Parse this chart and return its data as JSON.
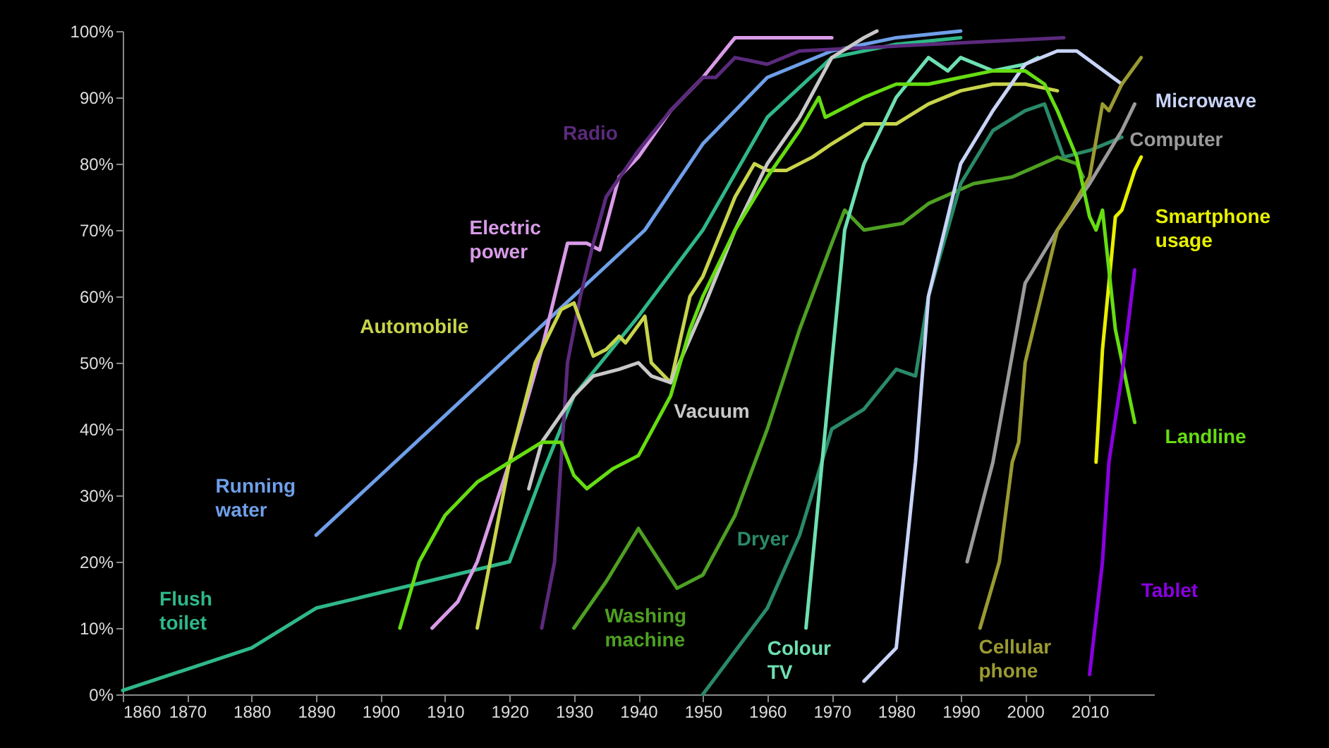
{
  "chart_data": {
    "type": "line",
    "xlim": [
      1860,
      2020
    ],
    "xticks": [
      1860,
      1870,
      1880,
      1890,
      1900,
      1910,
      1920,
      1930,
      1940,
      1950,
      1960,
      1970,
      1980,
      1990,
      2000,
      2010
    ],
    "ylim": [
      0,
      100
    ],
    "yticks": [
      {
        "value": 0,
        "label": "0%"
      },
      {
        "value": 10,
        "label": "10%"
      },
      {
        "value": 20,
        "label": "20%"
      },
      {
        "value": 30,
        "label": "30%"
      },
      {
        "value": 40,
        "label": "40%"
      },
      {
        "value": 50,
        "label": "50%"
      },
      {
        "value": 60,
        "label": "60%"
      },
      {
        "value": 70,
        "label": "70%"
      },
      {
        "value": 80,
        "label": "80%"
      },
      {
        "value": 90,
        "label": "90%"
      },
      {
        "value": 100,
        "label": "100%"
      }
    ],
    "grid": false,
    "marker": "none",
    "line_style": "solid",
    "series": [
      {
        "name": "Flush toilet",
        "color": "#2fb888",
        "x": [
          1860,
          1880,
          1890,
          1920,
          1925,
          1930,
          1940,
          1950,
          1960,
          1970,
          1980,
          1990
        ],
        "values": [
          0.6,
          7,
          13,
          20,
          33,
          45,
          57,
          70,
          87,
          96,
          98,
          99
        ]
      },
      {
        "name": "Running water",
        "color": "#6f9fe8",
        "x": [
          1890,
          1941,
          1950,
          1960,
          1970,
          1980,
          1990
        ],
        "values": [
          24,
          70,
          83,
          93,
          97,
          99,
          100
        ]
      },
      {
        "name": "Electric power",
        "color": "#d99be8",
        "x": [
          1908,
          1912,
          1915,
          1920,
          1925,
          1929,
          1932,
          1934,
          1937,
          1940,
          1945,
          1950,
          1955,
          1970
        ],
        "values": [
          10,
          14,
          20,
          35,
          52,
          68,
          68,
          67,
          78,
          81,
          88,
          93,
          99,
          99
        ]
      },
      {
        "name": "Radio",
        "color": "#5b2a7c",
        "x": [
          1925,
          1927,
          1929,
          1931,
          1933,
          1935,
          1940,
          1945,
          1950,
          1952,
          1955,
          1960,
          1965,
          2006
        ],
        "values": [
          10,
          20,
          50,
          60,
          68,
          75,
          82,
          88,
          93,
          93,
          96,
          95,
          97,
          99
        ]
      },
      {
        "name": "Automobile",
        "color": "#c8d44a",
        "x": [
          1915,
          1917,
          1920,
          1924,
          1928,
          1930,
          1933,
          1935,
          1937,
          1938,
          1941,
          1942,
          1945,
          1948,
          1950,
          1955,
          1958,
          1960,
          1963,
          1967,
          1970,
          1975,
          1980,
          1985,
          1990,
          1995,
          2000,
          2005
        ],
        "values": [
          10,
          20,
          35,
          50,
          58,
          59,
          51,
          52,
          54,
          53,
          57,
          50,
          47,
          60,
          63,
          75,
          80,
          79,
          79,
          81,
          83,
          86,
          86,
          89,
          91,
          92,
          92,
          91
        ]
      },
      {
        "name": "Vacuum",
        "color": "#c8c8c8",
        "x": [
          1923,
          1925,
          1930,
          1933,
          1937,
          1940,
          1942,
          1945,
          1950,
          1955,
          1960,
          1965,
          1970,
          1975,
          1977
        ],
        "values": [
          31,
          38,
          45,
          48,
          49,
          50,
          48,
          47,
          58,
          70,
          80,
          87,
          96,
          99,
          100
        ]
      },
      {
        "name": "Washing machine",
        "color": "#4ea022",
        "x": [
          1930,
          1935,
          1940,
          1944,
          1946,
          1950,
          1955,
          1960,
          1965,
          1970,
          1972,
          1975,
          1981,
          1985,
          1992,
          1998,
          2005,
          2008,
          2009
        ],
        "values": [
          10,
          17,
          25,
          19,
          16,
          18,
          27,
          40,
          55,
          68,
          73,
          70,
          71,
          74,
          77,
          78,
          81,
          80,
          78
        ]
      },
      {
        "name": "Dryer",
        "color": "#2a8a68",
        "x": [
          1950,
          1960,
          1965,
          1970,
          1975,
          1980,
          1983,
          1985,
          1990,
          1995,
          2000,
          2003,
          2006,
          2010,
          2015
        ],
        "values": [
          0,
          13,
          24,
          40,
          43,
          49,
          48,
          60,
          77,
          85,
          88,
          89,
          81,
          82,
          84
        ]
      },
      {
        "name": "Colour TV",
        "color": "#6ee0b2",
        "x": [
          1966,
          1968,
          1970,
          1972,
          1975,
          1978,
          1980,
          1985,
          1988,
          1990,
          1995,
          2000,
          2002
        ],
        "values": [
          10,
          30,
          50,
          70,
          80,
          86,
          90,
          96,
          94,
          96,
          94,
          95,
          96
        ]
      },
      {
        "name": "Microwave",
        "color": "#c8d4f8",
        "x": [
          1975,
          1980,
          1983,
          1985,
          1990,
          1995,
          2000,
          2005,
          2008,
          2015
        ],
        "values": [
          2,
          7,
          35,
          60,
          80,
          88,
          95,
          97,
          97,
          92
        ]
      },
      {
        "name": "Computer",
        "color": "#9a9a9a",
        "x": [
          1991,
          1995,
          2000,
          2005,
          2010,
          2015,
          2017
        ],
        "values": [
          20,
          35,
          62,
          70,
          77,
          85,
          89
        ]
      },
      {
        "name": "Cellular phone",
        "color": "#9a9a32",
        "x": [
          1993,
          1996,
          1998,
          1999,
          2000,
          2003,
          2005,
          2007,
          2010,
          2012,
          2013,
          2015,
          2018
        ],
        "values": [
          10,
          20,
          35,
          38,
          50,
          62,
          70,
          73,
          78,
          89,
          88,
          92,
          96
        ]
      },
      {
        "name": "Smartphone usage",
        "color": "#e8f000",
        "x": [
          2011,
          2012,
          2013,
          2014,
          2015,
          2017,
          2018
        ],
        "values": [
          35,
          52,
          62,
          72,
          73,
          79,
          81
        ]
      },
      {
        "name": "Landline",
        "color": "#66dd11",
        "x": [
          1903,
          1906,
          1910,
          1915,
          1920,
          1925,
          1928,
          1930,
          1932,
          1936,
          1940,
          1945,
          1948,
          1950,
          1955,
          1960,
          1965,
          1968,
          1969,
          1975,
          1980,
          1985,
          1990,
          1995,
          2000,
          2003,
          2005,
          2008,
          2010,
          2011,
          2012,
          2014,
          2017
        ],
        "values": [
          10,
          20,
          27,
          32,
          35,
          38,
          38,
          33,
          31,
          34,
          36,
          45,
          55,
          60,
          70,
          78,
          85,
          90,
          87,
          90,
          92,
          92,
          93,
          94,
          94,
          92,
          88,
          81,
          72,
          70,
          73,
          55,
          41
        ]
      },
      {
        "name": "Tablet",
        "color": "#8a00e0",
        "x": [
          2010,
          2012,
          2013,
          2015,
          2017
        ],
        "values": [
          3,
          20,
          35,
          48,
          64
        ]
      }
    ]
  }
}
